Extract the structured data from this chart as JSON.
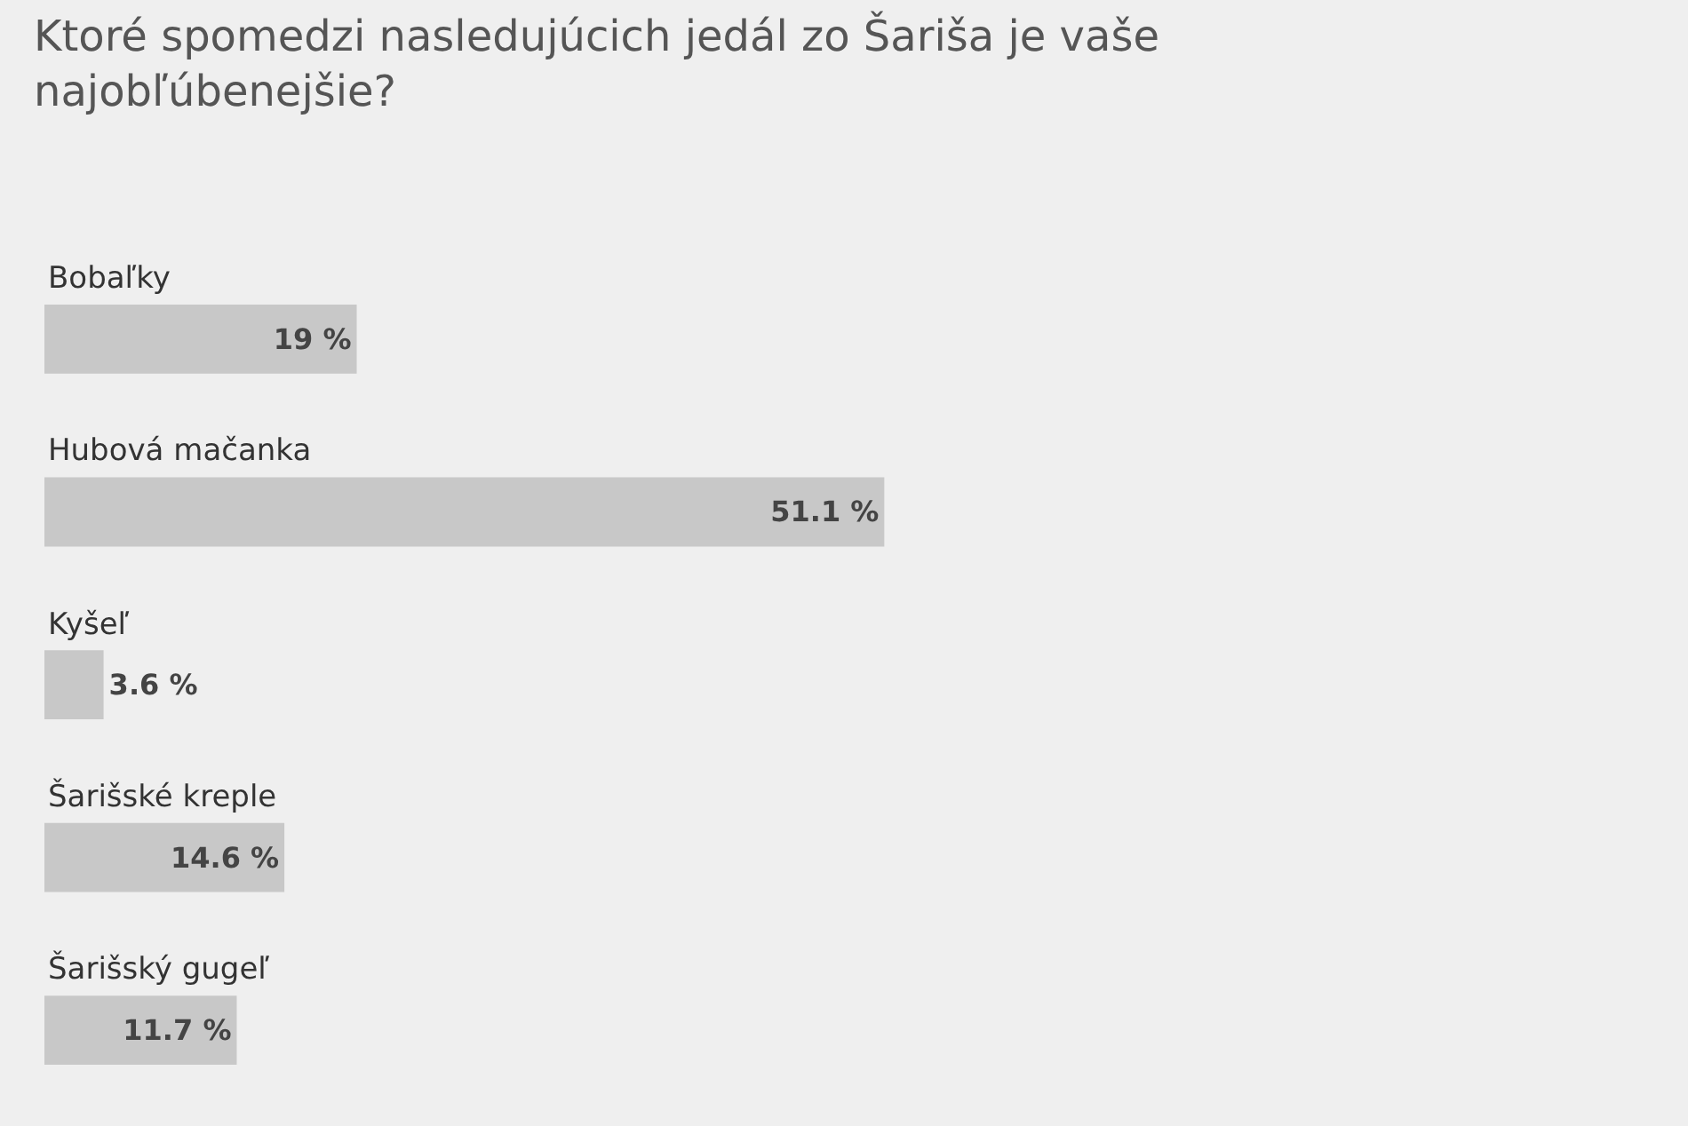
{
  "chart_data": {
    "type": "bar",
    "orientation": "horizontal",
    "title": "Ktoré spomedzi nasledujúcich jedál zo Šariša je vaše najobľúbenejšie?",
    "categories": [
      "Bobaľky",
      "Hubová mačanka",
      "Kyšeľ",
      "Šarišské kreple",
      "Šarišský gugeľ"
    ],
    "values": [
      19,
      51.1,
      3.6,
      14.6,
      11.7
    ],
    "value_labels": [
      "19 %",
      "51.1 %",
      "3.6 %",
      "14.6 %",
      "11.7 %"
    ],
    "color": "#c8c8c8",
    "xlim": [
      0,
      100
    ],
    "grid": false,
    "legend": false,
    "tick_labels": "y"
  }
}
